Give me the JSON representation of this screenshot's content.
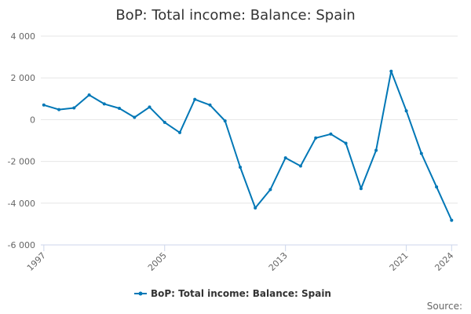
{
  "chart_data": {
    "type": "line",
    "title": "BoP: Total income: Balance: Spain",
    "xlabel": "",
    "ylabel": "",
    "x": [
      1997,
      1998,
      1999,
      2000,
      2001,
      2002,
      2003,
      2004,
      2005,
      2006,
      2007,
      2008,
      2009,
      2010,
      2011,
      2012,
      2013,
      2014,
      2015,
      2016,
      2017,
      2018,
      2019,
      2020,
      2021,
      2022,
      2023,
      2024
    ],
    "series": [
      {
        "name": "BoP: Total income: Balance: Spain",
        "color": "#0077b6",
        "values": [
          700,
          480,
          560,
          1180,
          750,
          540,
          110,
          600,
          -130,
          -620,
          970,
          700,
          -60,
          -2280,
          -4230,
          -3350,
          -1830,
          -2220,
          -880,
          -690,
          -1130,
          -3300,
          -1470,
          2320,
          420,
          -1620,
          -3220,
          -4820
        ]
      }
    ],
    "ylim": [
      -6000,
      4000
    ],
    "yticks": [
      4000,
      2000,
      0,
      -2000,
      -4000,
      -6000
    ],
    "ytick_labels": [
      "4 000",
      "2 000",
      "0",
      "-2 000",
      "-4 000",
      "-6 000"
    ],
    "xticks": [
      1997,
      2005,
      2013,
      2021,
      2024
    ],
    "xtick_labels": [
      "1997",
      "2005",
      "2013",
      "2021",
      "2024"
    ],
    "grid": true,
    "legend": "bottom-center",
    "credit": "Source:"
  }
}
